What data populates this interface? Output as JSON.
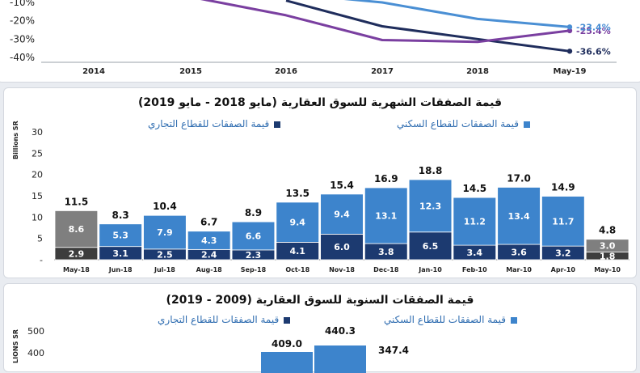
{
  "chart_data": [
    {
      "type": "line",
      "x": [
        "2014",
        "2015",
        "2016",
        "2017",
        "2018",
        "May-19"
      ],
      "ylim": [
        -40,
        -10
      ],
      "y_ticks": [
        "-10%",
        "-20%",
        "-30%",
        "-40%"
      ],
      "series": [
        {
          "color": "#1f2d5c",
          "values": [
            null,
            null,
            -9,
            -23,
            -30,
            -36.6
          ],
          "end_label": "-36.6%"
        },
        {
          "color": "#7a3fa0",
          "values": [
            null,
            -7,
            -17,
            -30.5,
            -31.5,
            -25.4
          ],
          "end_label": "-25.4%"
        },
        {
          "color": "#4a8fd4",
          "values": [
            null,
            null,
            -5,
            -10,
            -19,
            -23.4
          ],
          "end_label": "-23.4%"
        }
      ]
    },
    {
      "type": "bar",
      "title": "قيمة الصفقات الشهرية للسوق العقارية (مايو 2018 - مايو 2019)",
      "ylabel": "Billions SR",
      "ylim": [
        0,
        30
      ],
      "y_ticks": [
        "30",
        "25",
        "20",
        "15",
        "10",
        "5",
        "-"
      ],
      "legend": [
        "قيمة الصفقات للقطاع السكني",
        "قيمة الصفقات للقطاع التجاري"
      ],
      "categories": [
        "May-18",
        "Jun-18",
        "Jul-18",
        "Aug-18",
        "Sep-18",
        "Oct-18",
        "Nov-18",
        "Dec-18",
        "Jan-10",
        "Feb-10",
        "Mar-10",
        "Apr-10",
        "May-10"
      ],
      "series": [
        {
          "name": "قيمة الصفقات للقطاع التجاري",
          "color": "#1c3a70",
          "values": [
            2.9,
            3.1,
            2.5,
            2.4,
            2.3,
            4.1,
            6.0,
            3.8,
            6.5,
            3.4,
            3.6,
            3.2,
            1.8
          ]
        },
        {
          "name": "قيمة الصفقات للقطاع السكني",
          "color": "#3d84cc",
          "values": [
            8.6,
            5.3,
            7.9,
            4.3,
            6.6,
            9.4,
            9.4,
            13.1,
            12.3,
            11.2,
            13.4,
            11.7,
            3.0
          ]
        }
      ],
      "totals": [
        "11.5",
        "8.3",
        "10.4",
        "6.7",
        "8.9",
        "13.5",
        "15.4",
        "16.9",
        "18.8",
        "14.5",
        "17.0",
        "14.9",
        "4.8"
      ],
      "seg_labels_bottom": [
        "2.9",
        "3.1",
        "2.5",
        "2.4",
        "2.3",
        "4.1",
        "6.0",
        "3.8",
        "6.5",
        "3.4",
        "3.6",
        "3.2",
        "1.8"
      ],
      "seg_labels_top": [
        "8.6",
        "5.3",
        "7.9",
        "4.3",
        "6.6",
        "9.4",
        "9.4",
        "13.1",
        "12.3",
        "11.2",
        "13.4",
        "11.7",
        "3.0"
      ],
      "grey_categories": [
        "May-18",
        "May-10"
      ],
      "grey_colors": {
        "bottom": "#3d3d3d",
        "top": "#7f7f7f"
      }
    },
    {
      "type": "bar",
      "title": "قيمة الصفقات السنوية للسوق العقارية (2009 - 2019)",
      "ylabel": "LIONS SR",
      "y_ticks": [
        "500",
        "400"
      ],
      "legend": [
        "قيمة الصفقات للقطاع السكني",
        "قيمة الصفقات للقطاع التجاري"
      ],
      "visible_totals": [
        "409.0",
        "440.3",
        "347.4"
      ]
    }
  ]
}
